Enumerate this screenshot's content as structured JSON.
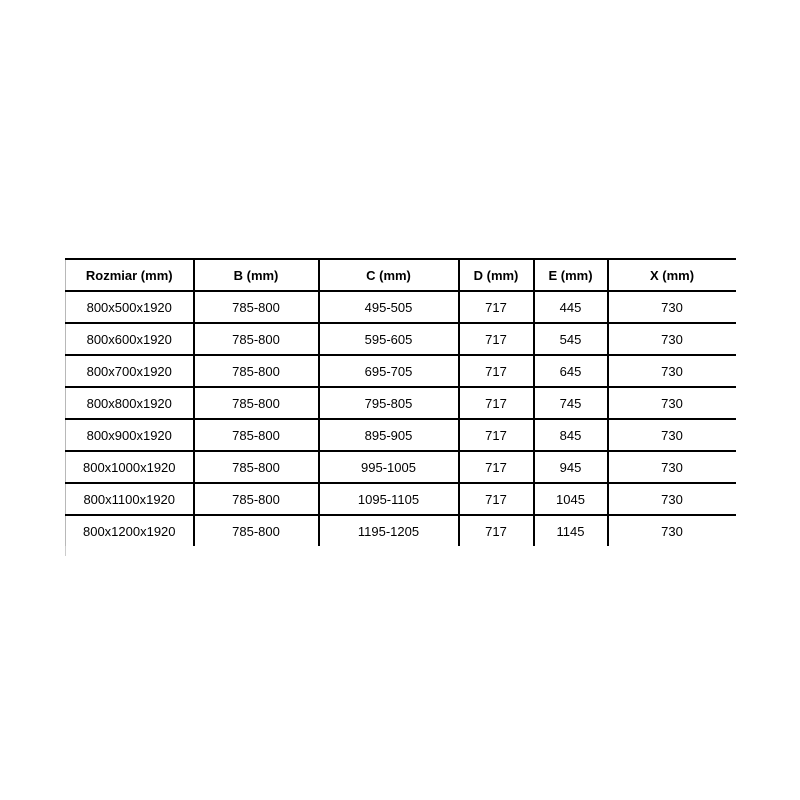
{
  "table": {
    "headers": [
      "Rozmiar (mm)",
      "B (mm)",
      "C (mm)",
      "D (mm)",
      "E (mm)",
      "X (mm)"
    ],
    "rows": [
      [
        "800x500x1920",
        "785-800",
        "495-505",
        "717",
        "445",
        "730"
      ],
      [
        "800x600x1920",
        "785-800",
        "595-605",
        "717",
        "545",
        "730"
      ],
      [
        "800x700x1920",
        "785-800",
        "695-705",
        "717",
        "645",
        "730"
      ],
      [
        "800x800x1920",
        "785-800",
        "795-805",
        "717",
        "745",
        "730"
      ],
      [
        "800x900x1920",
        "785-800",
        "895-905",
        "717",
        "845",
        "730"
      ],
      [
        "800x1000x1920",
        "785-800",
        "995-1005",
        "717",
        "945",
        "730"
      ],
      [
        "800x1100x1920",
        "785-800",
        "1095-1105",
        "717",
        "1045",
        "730"
      ],
      [
        "800x1200x1920",
        "785-800",
        "1195-1205",
        "717",
        "1145",
        "730"
      ]
    ]
  },
  "colors": {
    "border": "#000000",
    "outer_left_border": "#b8b8b8",
    "text": "#000000",
    "background": "#ffffff"
  }
}
